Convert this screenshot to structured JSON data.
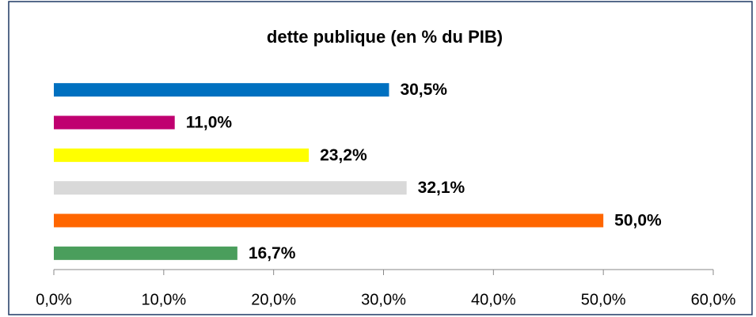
{
  "chart_data": {
    "type": "bar",
    "orientation": "horizontal",
    "title": "dette publique (en % du PIB)",
    "categories": [
      null,
      null,
      null,
      null,
      null,
      null
    ],
    "values": [
      30.5,
      11.0,
      23.2,
      32.1,
      50.0,
      16.7
    ],
    "value_labels": [
      "30,5%",
      "11,0%",
      "23,2%",
      "32,1%",
      "50,0%",
      "16,7%"
    ],
    "colors": [
      "#0070c0",
      "#c00070",
      "#ffff00",
      "#d9d9d9",
      "#ff6600",
      "#4a9e5c"
    ],
    "xlim": [
      0,
      60
    ],
    "xticks": [
      {
        "value": 0,
        "label": "0,0%"
      },
      {
        "value": 10,
        "label": "10,0%"
      },
      {
        "value": 20,
        "label": "20,0%"
      },
      {
        "value": 30,
        "label": "30,0%"
      },
      {
        "value": 40,
        "label": "40,0%"
      },
      {
        "value": 50,
        "label": "50,0%"
      },
      {
        "value": 60,
        "label": "60,0%"
      }
    ],
    "grid": false
  }
}
